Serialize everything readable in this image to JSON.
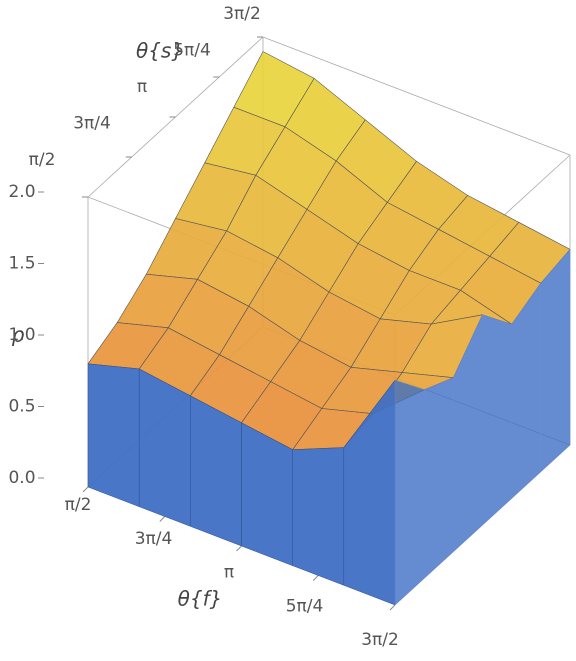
{
  "chart_data": {
    "type": "surface",
    "x_label": "θ{f}",
    "y_label": "θ{s}",
    "z_label": "ρ",
    "x": [
      1.5708,
      2.0944,
      2.618,
      3.1416,
      3.6652,
      4.1888,
      4.7124
    ],
    "y": [
      1.5708,
      2.0944,
      2.618,
      3.1416,
      3.6652,
      4.1888,
      4.7124
    ],
    "z": [
      [
        0.85,
        0.95,
        0.9,
        0.85,
        0.8,
        0.95,
        1.55
      ],
      [
        0.95,
        1.05,
        1.0,
        0.95,
        0.9,
        1.0,
        1.3
      ],
      [
        1.1,
        1.2,
        1.15,
        1.05,
        1.0,
        1.1,
        1.2
      ],
      [
        1.3,
        1.35,
        1.3,
        1.2,
        1.15,
        1.25,
        1.45
      ],
      [
        1.5,
        1.55,
        1.45,
        1.35,
        1.3,
        1.3,
        1.2
      ],
      [
        1.7,
        1.7,
        1.6,
        1.45,
        1.4,
        1.35,
        1.3
      ],
      [
        1.9,
        1.85,
        1.7,
        1.55,
        1.45,
        1.4,
        1.35
      ]
    ],
    "xlim": [
      1.5708,
      4.7124
    ],
    "ylim": [
      1.5708,
      4.7124
    ],
    "zlim": [
      0,
      2
    ],
    "xticks": [
      {
        "value": 1.5708,
        "label": "π/2"
      },
      {
        "value": 2.3562,
        "label": "3π/4"
      },
      {
        "value": 3.1416,
        "label": "π"
      },
      {
        "value": 3.927,
        "label": "5π/4"
      },
      {
        "value": 4.7124,
        "label": "3π/2"
      }
    ],
    "yticks": [
      {
        "value": 1.5708,
        "label": "π/2"
      },
      {
        "value": 2.3562,
        "label": "3π/4"
      },
      {
        "value": 3.1416,
        "label": "π"
      },
      {
        "value": 3.927,
        "label": "5π/4"
      },
      {
        "value": 4.7124,
        "label": "3π/2"
      }
    ],
    "zticks": [
      {
        "value": 0,
        "label": "0.0"
      },
      0.5,
      {
        "value": 1,
        "label": "1.0"
      },
      1.5,
      {
        "value": 2,
        "label": "2.0"
      }
    ],
    "surface_colors": [
      "#e88a3c",
      "#e8dc3c"
    ],
    "wall_color": "#3f6fc4"
  }
}
